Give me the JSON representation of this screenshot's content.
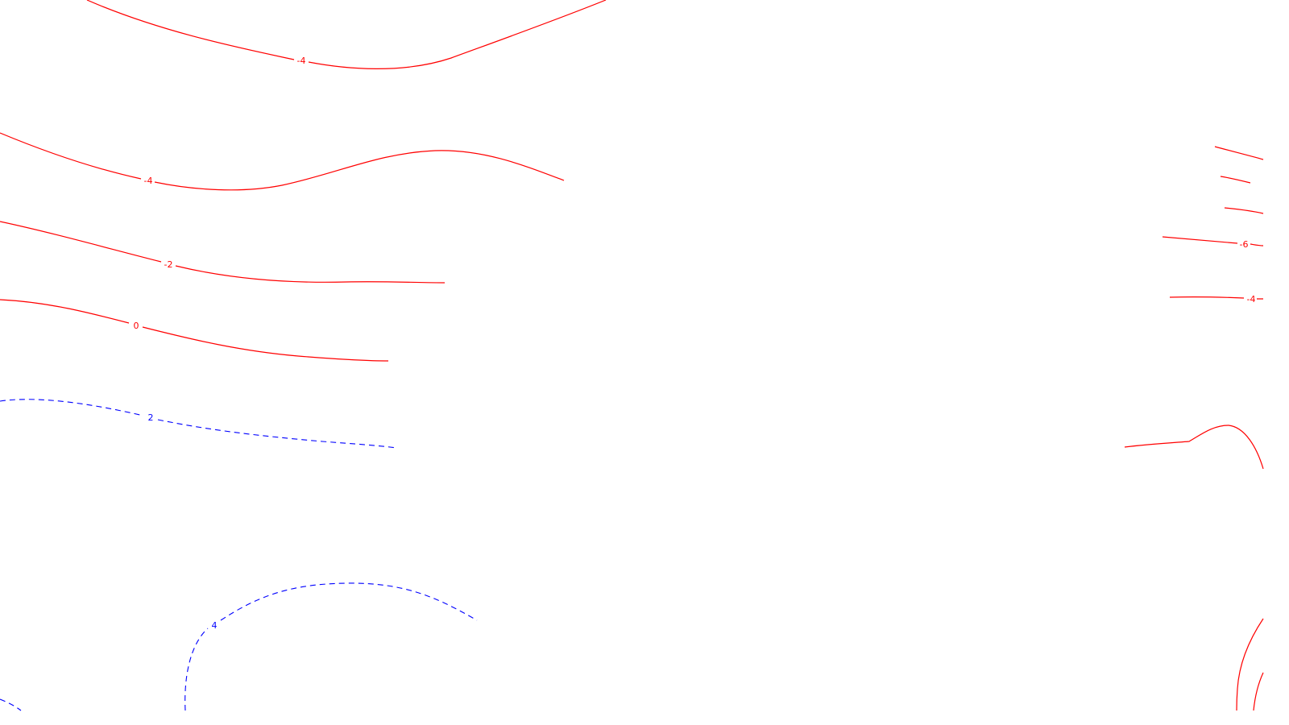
{
  "map": {
    "colors": {
      "background": "#ffffff",
      "negative_contour": "#ff0000",
      "positive_contour": "#0000ff"
    },
    "contour_labels": [
      "-4",
      "-4",
      "-2",
      "0",
      "2",
      "4",
      "-6",
      "-4"
    ]
  }
}
